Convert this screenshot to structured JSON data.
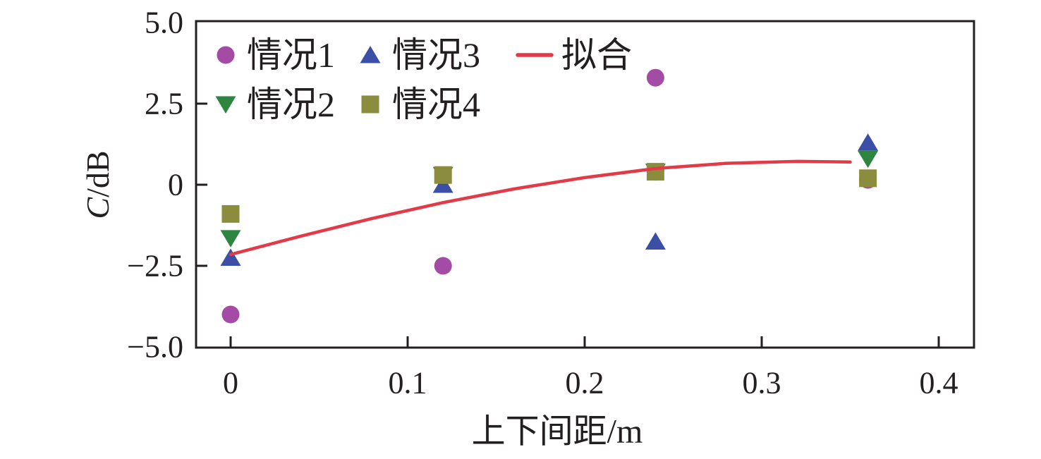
{
  "figure": {
    "background": "#ffffff",
    "axis_color": "#231f20",
    "text_color": "#231f20"
  },
  "chart_data": {
    "type": "scatter",
    "title": "",
    "xlabel": "上下间距/m",
    "ylabel": "C/dB",
    "ylabel_italic": "C",
    "ylabel_rest": "/dB",
    "xlim": [
      -0.02,
      0.42
    ],
    "ylim": [
      -5.0,
      5.0
    ],
    "grid": false,
    "legend_position": "upper-left-inside",
    "xticks": {
      "values": [
        0,
        0.1,
        0.2,
        0.3,
        0.4
      ],
      "labels": [
        "0",
        "0.1",
        "0.2",
        "0.3",
        "0.4"
      ]
    },
    "yticks": {
      "values": [
        5.0,
        2.5,
        0,
        -2.5,
        -5.0
      ],
      "labels": [
        "5.0",
        "2.5",
        "0",
        "−2.5",
        "−5.0"
      ]
    },
    "x": [
      0,
      0.12,
      0.24,
      0.36
    ],
    "series": [
      {
        "name": "情况1",
        "marker": "circle",
        "color": "#a44ca5",
        "values": [
          -4.0,
          -2.5,
          3.3,
          0.15
        ]
      },
      {
        "name": "情况3",
        "marker": "triangle-up",
        "color": "#3a4fa5",
        "values": [
          -2.25,
          0.0,
          -1.75,
          1.3
        ]
      },
      {
        "name": "情况2",
        "marker": "triangle-down",
        "color": "#2e8540",
        "values": [
          -1.65,
          0.3,
          0.4,
          0.8
        ]
      },
      {
        "name": "情况4",
        "marker": "square",
        "color": "#8b8c3e",
        "values": [
          -0.9,
          0.3,
          0.4,
          0.2
        ]
      }
    ],
    "fit": {
      "name": "拟合",
      "color": "#e23b47",
      "points": [
        [
          0.0,
          -2.15
        ],
        [
          0.04,
          -1.58
        ],
        [
          0.08,
          -1.04
        ],
        [
          0.12,
          -0.55
        ],
        [
          0.16,
          -0.13
        ],
        [
          0.2,
          0.22
        ],
        [
          0.24,
          0.5
        ],
        [
          0.28,
          0.66
        ],
        [
          0.32,
          0.72
        ],
        [
          0.35,
          0.7
        ]
      ]
    },
    "legend": {
      "items": [
        {
          "label": "情况1",
          "marker": "circle",
          "color": "#a44ca5",
          "row": 0,
          "col": 0
        },
        {
          "label": "情况3",
          "marker": "triangle-up",
          "color": "#3a4fa5",
          "row": 0,
          "col": 1
        },
        {
          "label": "拟合",
          "marker": "line",
          "color": "#e23b47",
          "row": 0,
          "col": 2
        },
        {
          "label": "情况2",
          "marker": "triangle-down",
          "color": "#2e8540",
          "row": 1,
          "col": 0
        },
        {
          "label": "情况4",
          "marker": "square",
          "color": "#8b8c3e",
          "row": 1,
          "col": 1
        }
      ]
    }
  }
}
